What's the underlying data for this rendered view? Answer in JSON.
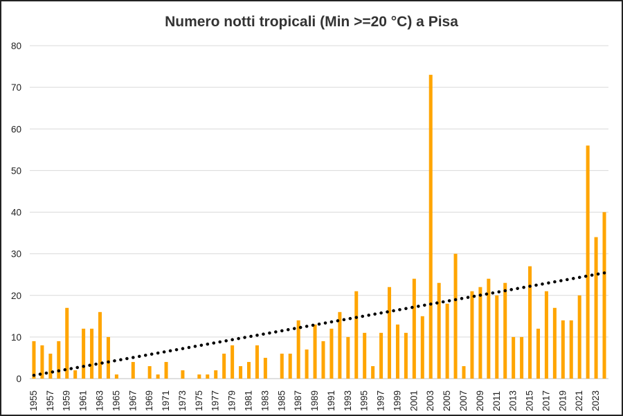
{
  "chart_data": {
    "type": "bar",
    "title": "Numero notti tropicali (Min >=20 °C) a Pisa",
    "xlabel": "",
    "ylabel": "",
    "ylim": [
      0,
      80
    ],
    "yticks": [
      "0",
      "10",
      "20",
      "30",
      "40",
      "50",
      "60",
      "70",
      "80"
    ],
    "grid": true,
    "legend": "none",
    "bar_color": "#FFA500",
    "trendline": {
      "type": "linear",
      "style": "dotted",
      "color": "#000000",
      "start": 0.8,
      "end": 25.4
    },
    "categories": [
      "1955",
      "1956",
      "1957",
      "1958",
      "1959",
      "1960",
      "1961",
      "1962",
      "1963",
      "1964",
      "1965",
      "1966",
      "1967",
      "1968",
      "1969",
      "1970",
      "1971",
      "1972",
      "1973",
      "1974",
      "1975",
      "1976",
      "1977",
      "1978",
      "1979",
      "1980",
      "1981",
      "1982",
      "1983",
      "1984",
      "1985",
      "1986",
      "1987",
      "1988",
      "1989",
      "1990",
      "1991",
      "1992",
      "1993",
      "1994",
      "1995",
      "1996",
      "1997",
      "1998",
      "1999",
      "2000",
      "2001",
      "2002",
      "2003",
      "2004",
      "2005",
      "2006",
      "2007",
      "2008",
      "2009",
      "2010",
      "2011",
      "2012",
      "2013",
      "2014",
      "2015",
      "2016",
      "2017",
      "2018",
      "2019",
      "2020",
      "2021",
      "2022",
      "2023",
      "2024"
    ],
    "x_tick_labels": [
      "1955",
      "1957",
      "1959",
      "1961",
      "1963",
      "1965",
      "1967",
      "1969",
      "1971",
      "1973",
      "1975",
      "1977",
      "1979",
      "1981",
      "1983",
      "1985",
      "1987",
      "1989",
      "1991",
      "1993",
      "1995",
      "1997",
      "1999",
      "2001",
      "2003",
      "2005",
      "2007",
      "2009",
      "2011",
      "2013",
      "2015",
      "2017",
      "2019",
      "2021",
      "2023"
    ],
    "values": [
      9,
      8,
      6,
      9,
      17,
      2,
      12,
      12,
      16,
      10,
      1,
      0,
      4,
      0,
      3,
      1,
      4,
      0,
      2,
      0,
      1,
      1,
      2,
      6,
      8,
      3,
      4,
      8,
      5,
      0,
      6,
      6,
      14,
      7,
      13,
      9,
      12,
      16,
      10,
      21,
      11,
      3,
      11,
      22,
      13,
      11,
      24,
      15,
      73,
      23,
      18,
      30,
      3,
      21,
      22,
      24,
      20,
      23,
      10,
      10,
      27,
      12,
      21,
      17,
      14,
      14,
      20,
      56,
      34,
      40
    ]
  }
}
